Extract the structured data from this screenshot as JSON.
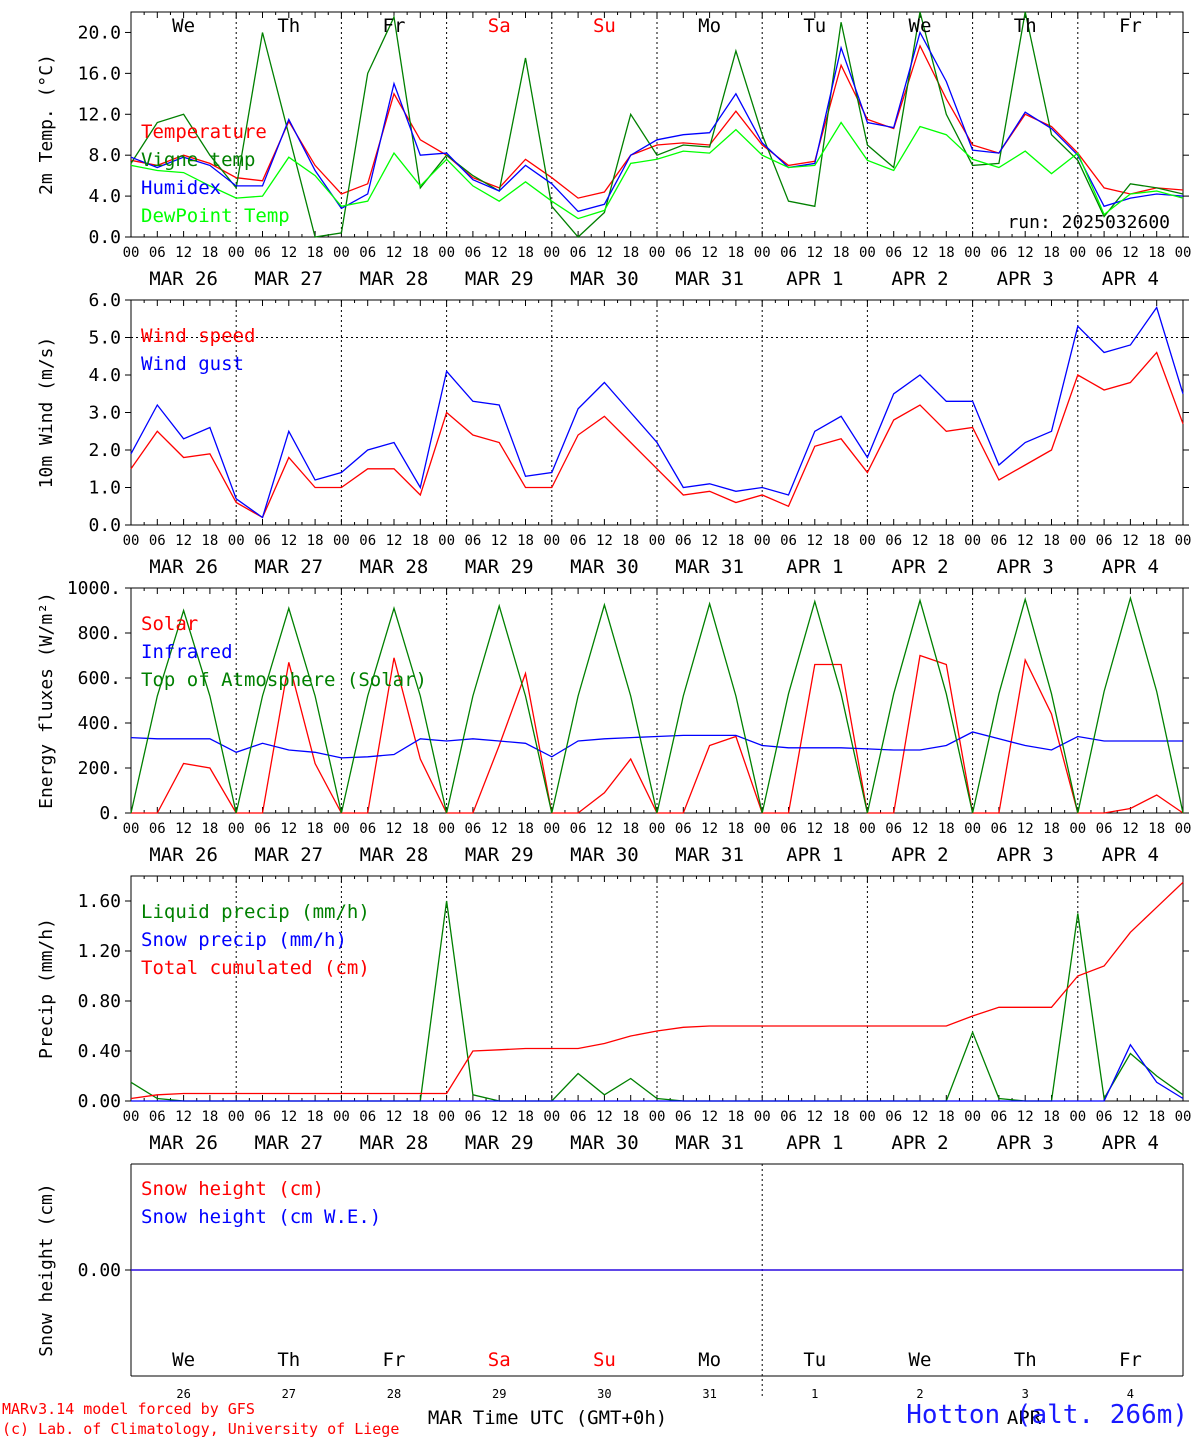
{
  "hour_ticks": [
    "00",
    "06",
    "12",
    "18"
  ],
  "day_labels": [
    "MAR 26",
    "MAR 27",
    "MAR 28",
    "MAR 29",
    "MAR 30",
    "MAR 31",
    "APR  1",
    "APR  2",
    "APR  3",
    "APR  4"
  ],
  "weekdays": [
    "We",
    "Th",
    "Fr",
    "Sa",
    "Su",
    "Mo",
    "Tu",
    "We",
    "Th",
    "Fr"
  ],
  "weekend_color": "#ff0000",
  "bottom_day_numbers": [
    "26",
    "27",
    "28",
    "29",
    "30",
    "31",
    "1",
    "2",
    "3",
    "4"
  ],
  "bottom_month_labels": [
    "MAR",
    "APR"
  ],
  "xlabel": "Time UTC (GMT+0h)",
  "credit_line1": "MARv3.14 model forced by GFS",
  "credit_line2": "(c) Lab. of Climatology, University of Liege",
  "station": "Hotton (alt. 266m)",
  "chart_data": [
    {
      "type": "line",
      "ylabel": "2m Temp. (°C)",
      "ylim": [
        0,
        22
      ],
      "yticks": [
        "0.0",
        "4.0",
        "8.0",
        "12.0",
        "16.0",
        "20.0"
      ],
      "ytick_values": [
        0,
        4,
        8,
        12,
        16,
        20
      ],
      "annotation": "run: 2025032600",
      "x_hours_from_mar26_00": [
        0,
        6,
        12,
        18,
        24,
        30,
        36,
        42,
        48,
        54,
        60,
        66,
        72,
        78,
        84,
        90,
        96,
        102,
        108,
        114,
        120,
        126,
        132,
        138,
        144,
        150,
        156,
        162,
        168,
        174,
        180,
        186,
        192,
        198,
        204,
        210,
        216,
        222,
        228,
        234,
        240
      ],
      "series": [
        {
          "name": "Temperature",
          "color": "#ff0000",
          "values": [
            7.5,
            7.0,
            8.0,
            7.2,
            5.8,
            5.5,
            11.3,
            7.0,
            4.2,
            5.2,
            14.0,
            9.5,
            8.0,
            5.8,
            4.8,
            7.6,
            5.8,
            3.8,
            4.4,
            8.0,
            9.0,
            9.2,
            9.0,
            12.3,
            9.0,
            7.0,
            7.4,
            16.8,
            11.5,
            10.6,
            18.7,
            13.5,
            9.0,
            8.2,
            12.0,
            10.8,
            8.2,
            4.8,
            4.2,
            4.8,
            4.6
          ]
        },
        {
          "name": "Vigne temp",
          "color": "#008000",
          "values": [
            7.2,
            11.2,
            12.0,
            8.0,
            4.8,
            20.0,
            10.0,
            0.0,
            0.4,
            16.0,
            21.5,
            4.8,
            8.0,
            6.0,
            4.5,
            17.5,
            3.0,
            0.0,
            2.4,
            12.0,
            8.0,
            9.0,
            8.8,
            18.2,
            10.0,
            3.5,
            3.0,
            21.0,
            9.0,
            6.8,
            22.0,
            12.0,
            7.0,
            7.2,
            22.0,
            10.0,
            7.5,
            2.0,
            5.2,
            4.8,
            4.2
          ]
        },
        {
          "name": "Humidex",
          "color": "#0000ff",
          "values": [
            7.8,
            6.8,
            7.8,
            7.0,
            5.0,
            5.0,
            11.5,
            6.5,
            2.8,
            4.2,
            15.0,
            8.0,
            8.2,
            5.6,
            4.5,
            7.0,
            5.2,
            2.5,
            3.2,
            8.0,
            9.5,
            10.0,
            10.2,
            14.0,
            9.2,
            6.8,
            7.2,
            18.5,
            11.2,
            10.7,
            20.0,
            15.2,
            8.5,
            8.2,
            12.2,
            10.6,
            8.0,
            3.0,
            3.8,
            4.2,
            4.0
          ]
        },
        {
          "name": "DewPoint Temp",
          "color": "#00ff00",
          "values": [
            7.0,
            6.5,
            6.3,
            5.0,
            3.8,
            4.0,
            7.8,
            6.0,
            3.0,
            3.5,
            8.2,
            5.0,
            7.6,
            5.0,
            3.5,
            5.4,
            3.5,
            1.8,
            2.6,
            7.2,
            7.6,
            8.4,
            8.2,
            10.5,
            8.0,
            6.8,
            7.0,
            11.2,
            7.5,
            6.5,
            10.8,
            10.0,
            7.6,
            6.8,
            8.4,
            6.2,
            8.2,
            2.2,
            4.2,
            4.5,
            3.8
          ]
        }
      ],
      "legend": [
        "Temperature",
        "Vigne temp",
        "Humidex",
        "DewPoint Temp"
      ]
    },
    {
      "type": "line",
      "ylabel": "10m Wind (m/s)",
      "ylim": [
        0,
        6
      ],
      "yticks": [
        "0.0",
        "1.0",
        "2.0",
        "3.0",
        "4.0",
        "5.0",
        "6.0"
      ],
      "ytick_values": [
        0,
        1,
        2,
        3,
        4,
        5,
        6
      ],
      "reference_line": 5.0,
      "x_hours_from_mar26_00": [
        0,
        6,
        12,
        18,
        24,
        30,
        36,
        42,
        48,
        54,
        60,
        66,
        72,
        78,
        84,
        90,
        96,
        102,
        108,
        114,
        120,
        126,
        132,
        138,
        144,
        150,
        156,
        162,
        168,
        174,
        180,
        186,
        192,
        198,
        204,
        210,
        216,
        222,
        228,
        234,
        240
      ],
      "series": [
        {
          "name": "Wind speed",
          "color": "#ff0000",
          "values": [
            1.5,
            2.5,
            1.8,
            1.9,
            0.6,
            0.2,
            1.8,
            1.0,
            1.0,
            1.5,
            1.5,
            0.8,
            3.0,
            2.4,
            2.2,
            1.0,
            1.0,
            2.4,
            2.9,
            2.2,
            1.5,
            0.8,
            0.9,
            0.6,
            0.8,
            0.5,
            2.1,
            2.3,
            1.4,
            2.8,
            3.2,
            2.5,
            2.6,
            1.2,
            1.6,
            2.0,
            4.0,
            3.6,
            3.8,
            4.6,
            2.7
          ]
        },
        {
          "name": "Wind gust",
          "color": "#0000ff",
          "values": [
            1.9,
            3.2,
            2.3,
            2.6,
            0.7,
            0.2,
            2.5,
            1.2,
            1.4,
            2.0,
            2.2,
            1.0,
            4.1,
            3.3,
            3.2,
            1.3,
            1.4,
            3.1,
            3.8,
            3.0,
            2.2,
            1.0,
            1.1,
            0.9,
            1.0,
            0.8,
            2.5,
            2.9,
            1.8,
            3.5,
            4.0,
            3.3,
            3.3,
            1.6,
            2.2,
            2.5,
            5.3,
            4.6,
            4.8,
            5.8,
            3.5
          ]
        }
      ],
      "legend": [
        "Wind speed",
        "Wind gust"
      ]
    },
    {
      "type": "line",
      "ylabel": "Energy fluxes (W/m²)",
      "ylim": [
        0,
        1000
      ],
      "yticks": [
        "0.",
        "200.",
        "400.",
        "600.",
        "800.",
        "1000."
      ],
      "ytick_values": [
        0,
        200,
        400,
        600,
        800,
        1000
      ],
      "x_hours_from_mar26_00": [
        0,
        6,
        12,
        18,
        24,
        30,
        36,
        42,
        48,
        54,
        60,
        66,
        72,
        78,
        84,
        90,
        96,
        102,
        108,
        114,
        120,
        126,
        132,
        138,
        144,
        150,
        156,
        162,
        168,
        174,
        180,
        186,
        192,
        198,
        204,
        210,
        216,
        222,
        228,
        234,
        240
      ],
      "series": [
        {
          "name": "Solar",
          "color": "#ff0000",
          "values": [
            0,
            0,
            220,
            200,
            0,
            0,
            670,
            220,
            0,
            0,
            690,
            240,
            0,
            0,
            300,
            620,
            0,
            0,
            90,
            240,
            0,
            0,
            300,
            340,
            0,
            0,
            660,
            660,
            0,
            0,
            700,
            660,
            0,
            0,
            680,
            440,
            0,
            0,
            20,
            80,
            0
          ]
        },
        {
          "name": "Infrared",
          "color": "#0000ff",
          "values": [
            335,
            330,
            330,
            330,
            270,
            310,
            280,
            270,
            245,
            250,
            260,
            330,
            320,
            330,
            320,
            310,
            250,
            320,
            330,
            335,
            340,
            345,
            345,
            345,
            300,
            290,
            290,
            290,
            285,
            280,
            280,
            300,
            360,
            330,
            300,
            280,
            340,
            320,
            320,
            320,
            320
          ]
        },
        {
          "name": "Top of Atmosphere (Solar)",
          "color": "#008000",
          "values": [
            0,
            520,
            900,
            520,
            0,
            520,
            910,
            520,
            0,
            520,
            910,
            520,
            0,
            520,
            920,
            520,
            0,
            520,
            925,
            520,
            0,
            520,
            930,
            520,
            0,
            530,
            940,
            530,
            0,
            530,
            945,
            530,
            0,
            530,
            950,
            530,
            0,
            540,
            955,
            540,
            0
          ]
        }
      ],
      "legend": [
        "Solar",
        "Infrared",
        "Top of Atmosphere (Solar)"
      ]
    },
    {
      "type": "line",
      "ylabel": "Precip (mm/h)",
      "ylim": [
        0,
        1.8
      ],
      "yticks": [
        "0.00",
        "0.40",
        "0.80",
        "1.20",
        "1.60"
      ],
      "ytick_values": [
        0,
        0.4,
        0.8,
        1.2,
        1.6
      ],
      "x_hours_from_mar26_00": [
        0,
        6,
        12,
        18,
        24,
        30,
        36,
        42,
        48,
        54,
        60,
        66,
        72,
        78,
        84,
        90,
        96,
        102,
        108,
        114,
        120,
        126,
        132,
        138,
        144,
        150,
        156,
        162,
        168,
        174,
        180,
        186,
        192,
        198,
        204,
        210,
        216,
        222,
        228,
        234,
        240
      ],
      "series": [
        {
          "name": "Liquid precip (mm/h)",
          "color": "#008000",
          "values": [
            0.15,
            0.02,
            0.0,
            0.0,
            0.0,
            0.0,
            0.0,
            0.0,
            0.0,
            0.0,
            0.0,
            0.0,
            1.6,
            0.05,
            0.0,
            0.0,
            0.0,
            0.22,
            0.05,
            0.18,
            0.02,
            0.0,
            0.0,
            0.0,
            0.0,
            0.0,
            0.0,
            0.0,
            0.0,
            0.0,
            0.0,
            0.0,
            0.55,
            0.02,
            0.0,
            0.0,
            1.5,
            0.02,
            0.38,
            0.2,
            0.05
          ]
        },
        {
          "name": "Snow precip (mm/h)",
          "color": "#0000ff",
          "values": [
            0,
            0,
            0,
            0,
            0,
            0,
            0,
            0,
            0,
            0,
            0,
            0,
            0,
            0,
            0,
            0,
            0,
            0,
            0,
            0,
            0,
            0,
            0,
            0,
            0,
            0,
            0,
            0,
            0,
            0,
            0,
            0,
            0,
            0,
            0,
            0,
            0,
            0,
            0.45,
            0.15,
            0.02
          ]
        },
        {
          "name": "Total cumulated (cm)",
          "color": "#ff0000",
          "values": [
            0.02,
            0.05,
            0.06,
            0.06,
            0.06,
            0.06,
            0.06,
            0.06,
            0.06,
            0.06,
            0.06,
            0.06,
            0.06,
            0.4,
            0.41,
            0.42,
            0.42,
            0.42,
            0.46,
            0.52,
            0.56,
            0.59,
            0.6,
            0.6,
            0.6,
            0.6,
            0.6,
            0.6,
            0.6,
            0.6,
            0.6,
            0.6,
            0.68,
            0.75,
            0.75,
            0.75,
            1.0,
            1.08,
            1.35,
            1.55,
            1.75
          ]
        }
      ],
      "legend": [
        "Liquid precip (mm/h)",
        "Snow precip (mm/h)",
        "Total cumulated (cm)"
      ]
    },
    {
      "type": "line",
      "ylabel": "Snow height (cm)",
      "yticks": [
        "0.00"
      ],
      "series": [
        {
          "name": "Snow height (cm)",
          "color": "#ff0000",
          "values": [
            0,
            0,
            0,
            0,
            0,
            0,
            0,
            0,
            0,
            0,
            0
          ]
        },
        {
          "name": "Snow height (cm W.E.)",
          "color": "#0000ff",
          "values": [
            0,
            0,
            0,
            0,
            0,
            0,
            0,
            0,
            0,
            0,
            0
          ]
        }
      ],
      "legend": [
        "Snow height (cm)",
        "Snow height (cm W.E.)"
      ]
    }
  ]
}
